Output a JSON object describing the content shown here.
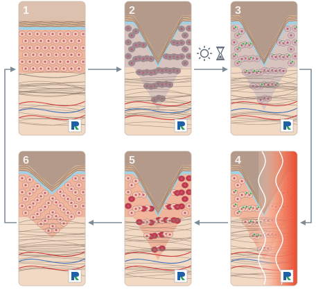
{
  "panels": [
    {
      "number": "1",
      "state": "healthy skin"
    },
    {
      "number": "2",
      "state": "wrinkle with damaged cells"
    },
    {
      "number": "3",
      "state": "treated cells (green markers)"
    },
    {
      "number": "4",
      "state": "heat / energy waves"
    },
    {
      "number": "5",
      "state": "inflamed red cells"
    },
    {
      "number": "6",
      "state": "restored skin with shallow wrinkle"
    }
  ],
  "icons": [
    "sun-icon",
    "hourglass-icon",
    "logo-icon",
    "arrow-icon"
  ],
  "colors": {
    "background": "#ffffff",
    "arrow": "#7d8b97",
    "skin_surface": "#cfae93",
    "stratum_blue": "#9fd2e6",
    "epidermis": "#f0b59a",
    "cell_fill": "#f4c8b4",
    "nucleus": "#c25b6f",
    "dermis": "#f1d9c4",
    "fiber": "#8b7a6c",
    "vessel_red": "#d23a3a",
    "vessel_blue": "#3d6fb6",
    "gray_cell": "#9b8f95",
    "green_marker": "#4aa64a",
    "heat_red": "#ef5a3c",
    "inflamed_cell": "#c4374a",
    "logo_blue": "#1f5fa8",
    "logo_green": "#2aa05a"
  }
}
